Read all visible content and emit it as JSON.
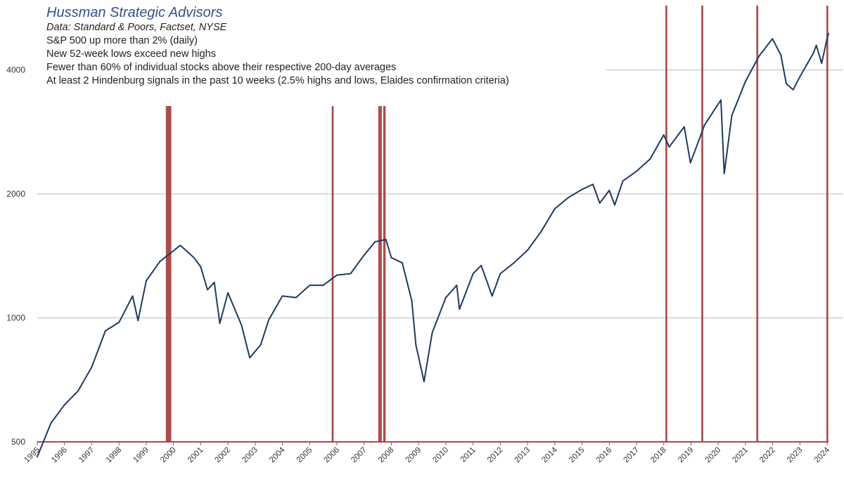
{
  "chart_data": {
    "type": "line",
    "title": "Hussman Strategic Advisors",
    "subtitle": "Data: Standard & Poors, Factset, NYSE",
    "criteria": [
      "S&P 500 up more than 2% (daily)",
      "New 52-week lows exceed new highs",
      "Fewer than 60% of individual stocks above their respective 200-day averages",
      "At least 2 Hindenburg signals in the past 10 weeks (2.5% highs and lows, Elaides confirmation criteria)"
    ],
    "y_scale": "log",
    "ylim": [
      500,
      5000
    ],
    "yticks": [
      500,
      1000,
      2000,
      4000
    ],
    "xlim": [
      1995.0,
      2024.05
    ],
    "xticks": [
      "1995",
      "1996",
      "1997",
      "1998",
      "1999",
      "2000",
      "2001",
      "2002",
      "2003",
      "2004",
      "2005",
      "2006",
      "2007",
      "2008",
      "2009",
      "2010",
      "2011",
      "2012",
      "2013",
      "2014",
      "2015",
      "2016",
      "2017",
      "2018",
      "2019",
      "2020",
      "2021",
      "2022",
      "2023",
      "2024"
    ],
    "grid": "horizontal",
    "series": [
      {
        "color": "#1f3a60",
        "points": [
          [
            1995.0,
            460
          ],
          [
            1995.5,
            555
          ],
          [
            1996.0,
            615
          ],
          [
            1996.5,
            665
          ],
          [
            1997.0,
            760
          ],
          [
            1997.5,
            930
          ],
          [
            1998.0,
            975
          ],
          [
            1998.5,
            1130
          ],
          [
            1998.7,
            985
          ],
          [
            1999.0,
            1230
          ],
          [
            1999.5,
            1370
          ],
          [
            2000.0,
            1455
          ],
          [
            2000.25,
            1500
          ],
          [
            2000.5,
            1450
          ],
          [
            2000.75,
            1400
          ],
          [
            2001.0,
            1330
          ],
          [
            2001.25,
            1170
          ],
          [
            2001.5,
            1220
          ],
          [
            2001.7,
            970
          ],
          [
            2002.0,
            1150
          ],
          [
            2002.5,
            960
          ],
          [
            2002.8,
            800
          ],
          [
            2003.2,
            860
          ],
          [
            2003.5,
            990
          ],
          [
            2004.0,
            1130
          ],
          [
            2004.5,
            1120
          ],
          [
            2005.0,
            1200
          ],
          [
            2005.5,
            1200
          ],
          [
            2006.0,
            1270
          ],
          [
            2006.5,
            1280
          ],
          [
            2007.0,
            1420
          ],
          [
            2007.4,
            1530
          ],
          [
            2007.8,
            1550
          ],
          [
            2008.0,
            1400
          ],
          [
            2008.4,
            1360
          ],
          [
            2008.75,
            1100
          ],
          [
            2008.9,
            860
          ],
          [
            2009.2,
            700
          ],
          [
            2009.5,
            920
          ],
          [
            2010.0,
            1120
          ],
          [
            2010.4,
            1200
          ],
          [
            2010.5,
            1050
          ],
          [
            2011.0,
            1280
          ],
          [
            2011.3,
            1340
          ],
          [
            2011.7,
            1130
          ],
          [
            2012.0,
            1280
          ],
          [
            2012.5,
            1360
          ],
          [
            2013.0,
            1460
          ],
          [
            2013.5,
            1620
          ],
          [
            2014.0,
            1840
          ],
          [
            2014.5,
            1960
          ],
          [
            2015.0,
            2050
          ],
          [
            2015.4,
            2110
          ],
          [
            2015.65,
            1900
          ],
          [
            2016.0,
            2040
          ],
          [
            2016.2,
            1880
          ],
          [
            2016.5,
            2150
          ],
          [
            2017.0,
            2270
          ],
          [
            2017.5,
            2430
          ],
          [
            2018.0,
            2780
          ],
          [
            2018.2,
            2600
          ],
          [
            2018.75,
            2910
          ],
          [
            2018.98,
            2380
          ],
          [
            2019.5,
            2940
          ],
          [
            2019.9,
            3230
          ],
          [
            2020.1,
            3380
          ],
          [
            2020.22,
            2240
          ],
          [
            2020.5,
            3100
          ],
          [
            2021.0,
            3750
          ],
          [
            2021.5,
            4320
          ],
          [
            2021.99,
            4760
          ],
          [
            2022.3,
            4350
          ],
          [
            2022.5,
            3700
          ],
          [
            2022.75,
            3580
          ],
          [
            2023.0,
            3850
          ],
          [
            2023.5,
            4400
          ],
          [
            2023.6,
            4590
          ],
          [
            2023.8,
            4150
          ],
          [
            2024.0,
            4780
          ],
          [
            2024.05,
            4900
          ]
        ]
      }
    ],
    "signal_bands": [
      {
        "x": 1999.72,
        "w": 0.2
      },
      {
        "x": 2005.81,
        "w": 0.07
      },
      {
        "x": 2007.52,
        "w": 0.13
      },
      {
        "x": 2007.7,
        "w": 0.09
      },
      {
        "x": 2018.06,
        "w": 0.07
      },
      {
        "x": 2019.38,
        "w": 0.07
      },
      {
        "x": 2021.4,
        "w": 0.07
      },
      {
        "x": 2023.97,
        "w": 0.07
      }
    ],
    "band_color": "#a63d3d"
  }
}
